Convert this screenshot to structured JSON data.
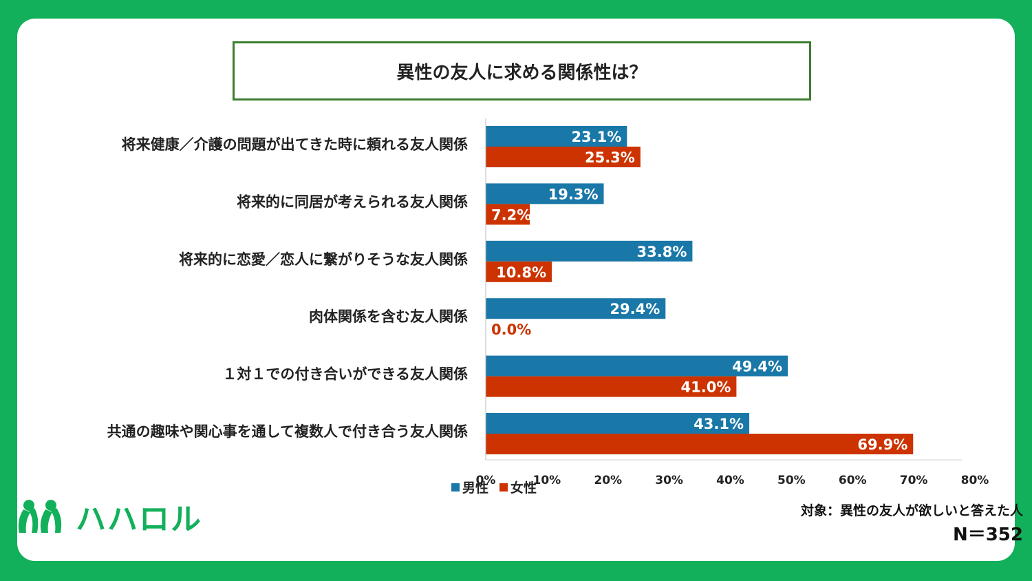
{
  "header": {
    "title": "異性の友人に求める関係性は？"
  },
  "colors": {
    "male": "#1a78a8",
    "female": "#cc3300",
    "brand": "#12b05a"
  },
  "chart_data": {
    "type": "bar",
    "orientation": "horizontal",
    "title": "異性の友人に求める関係性は？",
    "categories": [
      "将来健康／介護の問題が出てきた時に頼れる友人関係",
      "将来的に同居が考えられる友人関係",
      "将来的に恋愛／恋人に繋がりそうな友人関係",
      "肉体関係を含む友人関係",
      "１対１での付き合いができる友人関係",
      "共通の趣味や関心事を通して複数人で付き合う友人関係"
    ],
    "series": [
      {
        "name": "男性",
        "values": [
          23.1,
          19.3,
          33.8,
          29.4,
          49.4,
          43.1
        ],
        "labels": [
          "23.1%",
          "19.3%",
          "33.8%",
          "29.4%",
          "49.4%",
          "43.1%"
        ]
      },
      {
        "name": "女性",
        "values": [
          25.3,
          7.2,
          10.8,
          0.0,
          41.0,
          69.9
        ],
        "labels": [
          "25.3%",
          "7.2%",
          "10.8%",
          "0.0%",
          "41.0%",
          "69.9%"
        ]
      }
    ],
    "xlim": [
      0,
      80
    ],
    "ticks": [
      0,
      10,
      20,
      30,
      40,
      50,
      60,
      70,
      80
    ],
    "tick_labels": [
      "0%",
      "10%",
      "20%",
      "30%",
      "40%",
      "50%",
      "60%",
      "70%",
      "80%"
    ],
    "legend": "bottom",
    "grid": false
  },
  "legend": {
    "male": "男性",
    "female": "女性"
  },
  "logo": {
    "text": "ハハロル",
    "icon": "hahalol-logo-icon"
  },
  "note": {
    "subject": "対象：異性の友人が欲しいと答えた人",
    "n": "N＝352"
  }
}
